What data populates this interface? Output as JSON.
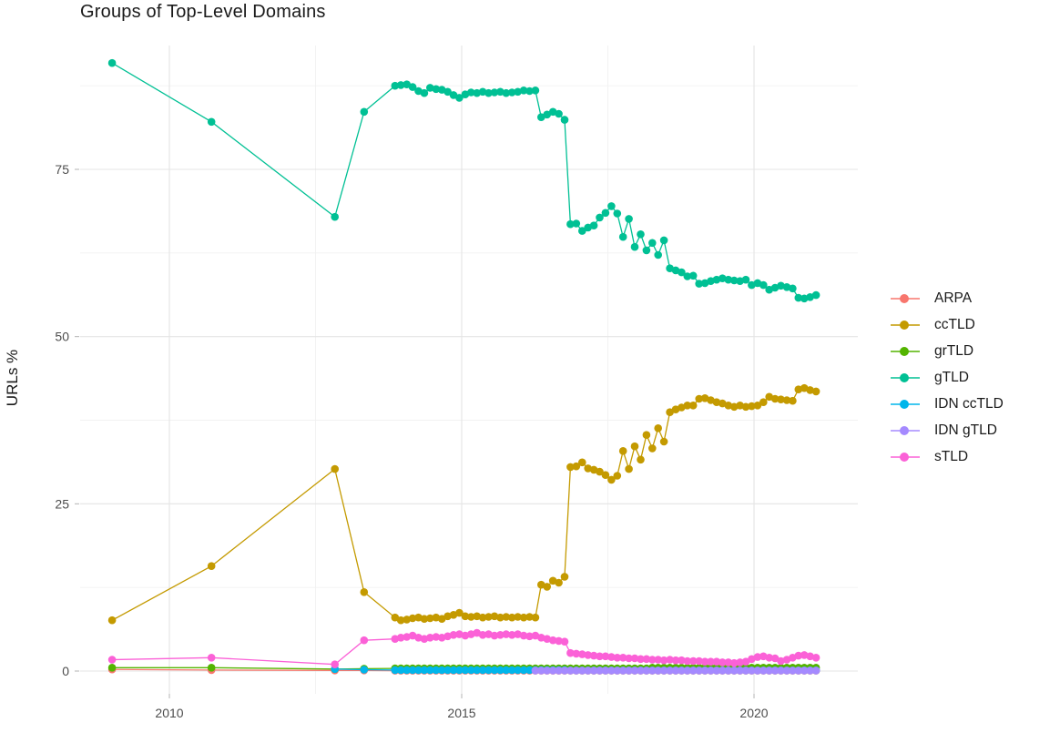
{
  "chart": {
    "title": "Groups of Top-Level Domains",
    "ylabel": "URLs %"
  },
  "colors": {
    "background": "#FFFFFF",
    "grid_major": "#E4E4E4",
    "grid_minor": "#F1F1F1",
    "tick_mark": "#B3B3B3",
    "tick_text": "#4D4D4D",
    "title_text": "#1A1A1A"
  },
  "chart_data": {
    "type": "line",
    "title": "Groups of Top-Level Domains",
    "xlabel": "",
    "ylabel": "URLs %",
    "legend_position": "right",
    "grid": true,
    "x_ticks": [
      2010,
      2015,
      2020
    ],
    "y_ticks": [
      0,
      25,
      50,
      75
    ],
    "x_minor_ticks": [
      2012.5,
      2017.5
    ],
    "y_minor_ticks": [
      12.5,
      37.5,
      62.5,
      87.5
    ],
    "xlim": [
      2008.5,
      2021.8
    ],
    "ylim": [
      -3.5,
      93.5
    ],
    "x_early": [
      2009.02,
      2010.72,
      2012.83,
      2013.33
    ],
    "x_dense": [
      2013.86,
      2013.96,
      2014.06,
      2014.16,
      2014.26,
      2014.36,
      2014.46,
      2014.56,
      2014.66,
      2014.76,
      2014.86,
      2014.96,
      2015.06,
      2015.16,
      2015.26,
      2015.36,
      2015.46,
      2015.56,
      2015.66,
      2015.76,
      2015.86,
      2015.96,
      2016.06,
      2016.16,
      2016.26,
      2016.36,
      2016.46,
      2016.56,
      2016.66,
      2016.76,
      2016.86,
      2016.96,
      2017.06,
      2017.16,
      2017.26,
      2017.36,
      2017.46,
      2017.56,
      2017.66,
      2017.76,
      2017.86,
      2017.96,
      2018.06,
      2018.16,
      2018.26,
      2018.36,
      2018.46,
      2018.56,
      2018.66,
      2018.76,
      2018.86,
      2018.96,
      2019.06,
      2019.16,
      2019.26,
      2019.36,
      2019.46,
      2019.56,
      2019.66,
      2019.76,
      2019.86,
      2019.96,
      2020.06,
      2020.16,
      2020.26,
      2020.36,
      2020.46,
      2020.56,
      2020.66,
      2020.76,
      2020.86,
      2020.96,
      2021.06
    ],
    "series": [
      {
        "name": "ARPA",
        "color": "#F8766D",
        "y_early": [
          0.25,
          0.15,
          0.1,
          0.1
        ],
        "y_dense": [
          0.05,
          0.05,
          0.05,
          0.05,
          0.05,
          0.05,
          0.05,
          0.05,
          0.05,
          0.05,
          0.05,
          0.05,
          0.05,
          0.05,
          0.05,
          0.05,
          0.05,
          0.05,
          0.05,
          0.05,
          0.05,
          0.05,
          0.05,
          0.05,
          0.05,
          0.05,
          0.05,
          0.05,
          0.05,
          0.05,
          0.05,
          0.05,
          0.05,
          0.05,
          0.05,
          0.05,
          0.05,
          0.05,
          0.05,
          0.05,
          0.05,
          0.05,
          0.05,
          0.05,
          0.05,
          0.05,
          0.05,
          0.05,
          0.05,
          0.05,
          0.05,
          0.05,
          0.05,
          0.05,
          0.05,
          0.05,
          0.05,
          0.05,
          0.05,
          0.05,
          0.05,
          0.05,
          0.05,
          0.05,
          0.05,
          0.05,
          0.05,
          0.05,
          0.05,
          0.05,
          0.05,
          0.05,
          0.05
        ]
      },
      {
        "name": "ccTLD",
        "color": "#C49A00",
        "y_early": [
          7.6,
          15.7,
          30.2,
          11.8
        ],
        "y_dense": [
          8.0,
          7.6,
          7.7,
          7.9,
          8.0,
          7.8,
          7.9,
          8.0,
          7.8,
          8.2,
          8.4,
          8.7,
          8.2,
          8.1,
          8.2,
          8.0,
          8.1,
          8.2,
          8.0,
          8.1,
          8.0,
          8.1,
          8.0,
          8.1,
          8.0,
          12.9,
          12.6,
          13.5,
          13.2,
          14.1,
          30.5,
          30.6,
          31.2,
          30.3,
          30.1,
          29.8,
          29.3,
          28.6,
          29.2,
          32.9,
          30.2,
          33.6,
          31.6,
          35.3,
          33.3,
          36.3,
          34.3,
          38.7,
          39.1,
          39.4,
          39.7,
          39.7,
          40.7,
          40.8,
          40.5,
          40.2,
          40.0,
          39.7,
          39.5,
          39.7,
          39.5,
          39.6,
          39.7,
          40.2,
          41.0,
          40.7,
          40.6,
          40.5,
          40.4,
          42.1,
          42.3,
          42.0,
          41.8
        ]
      },
      {
        "name": "grTLD",
        "color": "#53B400",
        "y_early": [
          0.5,
          0.5,
          0.3,
          0.35
        ],
        "y_dense": [
          0.4,
          0.4,
          0.4,
          0.4,
          0.4,
          0.4,
          0.4,
          0.4,
          0.4,
          0.4,
          0.4,
          0.4,
          0.4,
          0.4,
          0.4,
          0.4,
          0.4,
          0.4,
          0.4,
          0.4,
          0.4,
          0.4,
          0.4,
          0.4,
          0.4,
          0.4,
          0.4,
          0.4,
          0.4,
          0.4,
          0.4,
          0.4,
          0.4,
          0.4,
          0.4,
          0.4,
          0.4,
          0.4,
          0.4,
          0.4,
          0.4,
          0.4,
          0.4,
          0.4,
          0.5,
          0.5,
          0.5,
          0.5,
          0.5,
          0.5,
          0.5,
          0.5,
          0.5,
          0.5,
          0.5,
          0.5,
          0.5,
          0.5,
          0.5,
          0.5,
          0.5,
          0.5,
          0.5,
          0.5,
          0.5,
          0.5,
          0.5,
          0.5,
          0.5,
          0.5,
          0.5,
          0.5,
          0.5
        ]
      },
      {
        "name": "gTLD",
        "color": "#00C094",
        "y_early": [
          90.9,
          82.1,
          67.9,
          83.6
        ],
        "y_dense": [
          87.5,
          87.6,
          87.7,
          87.3,
          86.7,
          86.4,
          87.2,
          87.0,
          86.9,
          86.6,
          86.1,
          85.7,
          86.2,
          86.5,
          86.4,
          86.6,
          86.4,
          86.5,
          86.6,
          86.4,
          86.5,
          86.6,
          86.8,
          86.7,
          86.8,
          82.8,
          83.2,
          83.6,
          83.3,
          82.4,
          66.8,
          66.9,
          65.8,
          66.3,
          66.6,
          67.8,
          68.5,
          69.5,
          68.4,
          64.9,
          67.6,
          63.4,
          65.3,
          62.9,
          64.0,
          62.2,
          64.4,
          60.2,
          59.9,
          59.6,
          59.0,
          59.1,
          57.9,
          58.0,
          58.3,
          58.5,
          58.7,
          58.5,
          58.4,
          58.3,
          58.5,
          57.7,
          58.0,
          57.7,
          57.0,
          57.3,
          57.6,
          57.4,
          57.2,
          55.8,
          55.7,
          55.9,
          56.2
        ]
      },
      {
        "name": "IDN ccTLD",
        "color": "#00B6EB",
        "y_early": [
          null,
          null,
          0.3,
          0.2
        ],
        "y_dense": [
          0.15,
          0.15,
          0.15,
          0.15,
          0.15,
          0.15,
          0.15,
          0.15,
          0.15,
          0.15,
          0.15,
          0.15,
          0.15,
          0.15,
          0.15,
          0.15,
          0.15,
          0.15,
          0.15,
          0.15,
          0.15,
          0.15,
          0.15,
          0.15,
          0.15,
          0.15,
          0.15,
          0.15,
          0.15,
          0.15,
          0.1,
          0.1,
          0.1,
          0.1,
          0.1,
          0.1,
          0.1,
          0.1,
          0.1,
          0.1,
          0.1,
          0.1,
          0.1,
          0.1,
          0.1,
          0.1,
          0.1,
          0.1,
          0.1,
          0.1,
          0.1,
          0.1,
          0.1,
          0.1,
          0.1,
          0.1,
          0.1,
          0.1,
          0.1,
          0.1,
          0.1,
          0.1,
          0.1,
          0.1,
          0.1,
          0.1,
          0.1,
          0.1,
          0.1,
          0.1,
          0.1,
          0.1,
          0.1
        ]
      },
      {
        "name": "IDN gTLD",
        "color": "#A58AFF",
        "y_early": [
          null,
          null,
          null,
          null
        ],
        "y_dense": [
          null,
          null,
          null,
          null,
          null,
          null,
          null,
          null,
          null,
          null,
          null,
          null,
          null,
          null,
          null,
          null,
          null,
          null,
          null,
          null,
          null,
          null,
          null,
          null,
          0.08,
          0.08,
          0.08,
          0.08,
          0.08,
          0.08,
          0.08,
          0.08,
          0.08,
          0.08,
          0.08,
          0.08,
          0.08,
          0.08,
          0.08,
          0.08,
          0.08,
          0.08,
          0.08,
          0.08,
          0.08,
          0.08,
          0.08,
          0.08,
          0.08,
          0.08,
          0.08,
          0.08,
          0.08,
          0.08,
          0.08,
          0.08,
          0.08,
          0.08,
          0.08,
          0.08,
          0.08,
          0.08,
          0.08,
          0.08,
          0.08,
          0.08,
          0.08,
          0.08,
          0.08,
          0.08,
          0.08,
          0.08,
          0.08
        ]
      },
      {
        "name": "sTLD",
        "color": "#FB61D7",
        "y_early": [
          1.7,
          2.0,
          1.0,
          4.6
        ],
        "y_dense": [
          4.8,
          5.0,
          5.1,
          5.3,
          5.0,
          4.8,
          5.0,
          5.1,
          5.0,
          5.2,
          5.4,
          5.5,
          5.3,
          5.5,
          5.7,
          5.4,
          5.5,
          5.3,
          5.4,
          5.5,
          5.4,
          5.5,
          5.3,
          5.2,
          5.3,
          5.0,
          4.8,
          4.6,
          4.5,
          4.4,
          2.7,
          2.6,
          2.5,
          2.4,
          2.3,
          2.2,
          2.2,
          2.1,
          2.0,
          2.0,
          1.9,
          1.9,
          1.8,
          1.8,
          1.7,
          1.7,
          1.6,
          1.7,
          1.6,
          1.6,
          1.5,
          1.5,
          1.5,
          1.4,
          1.4,
          1.4,
          1.3,
          1.3,
          1.2,
          1.3,
          1.4,
          1.8,
          2.1,
          2.2,
          2.0,
          1.9,
          1.5,
          1.7,
          2.0,
          2.3,
          2.4,
          2.2,
          2.0
        ]
      }
    ]
  }
}
